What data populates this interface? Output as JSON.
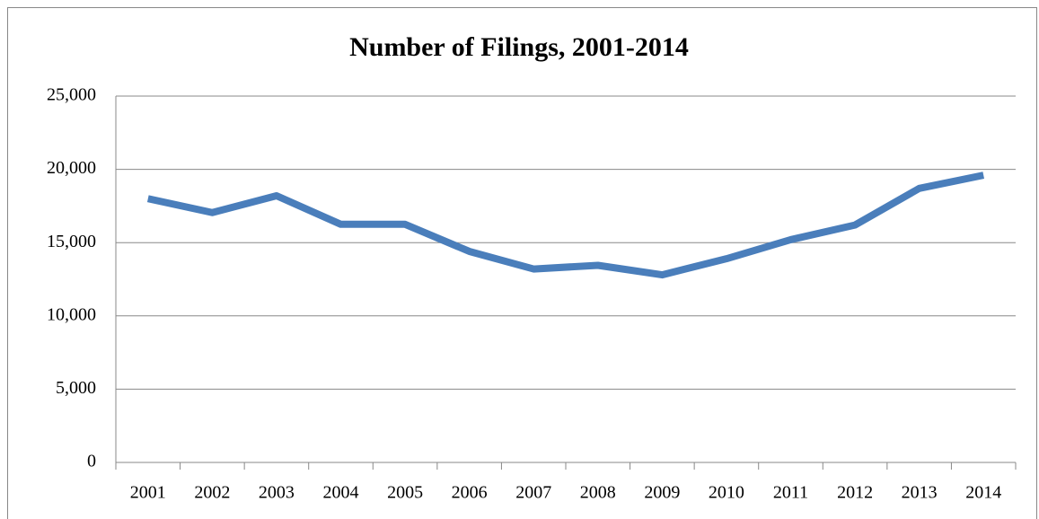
{
  "chart_data": {
    "type": "line",
    "title": "Number of Filings, 2001-2014",
    "categories": [
      "2001",
      "2002",
      "2003",
      "2004",
      "2005",
      "2006",
      "2007",
      "2008",
      "2009",
      "2010",
      "2011",
      "2012",
      "2013",
      "2014"
    ],
    "series": [
      {
        "name": "Filings",
        "color": "#4a7ebb",
        "values": [
          18000,
          17050,
          18200,
          16250,
          16250,
          14400,
          13200,
          13450,
          12800,
          13900,
          15200,
          16200,
          18700,
          19600
        ]
      }
    ],
    "ylim": [
      0,
      25000
    ],
    "yticks": [
      0,
      {
        "value": 5000,
        "label": "5,000"
      },
      {
        "value": 10000,
        "label": "10,000"
      },
      {
        "value": 15000,
        "label": "15,000"
      },
      {
        "value": 20000,
        "label": "20,000"
      },
      {
        "value": 25000,
        "label": "25,000"
      }
    ],
    "grid": true
  }
}
